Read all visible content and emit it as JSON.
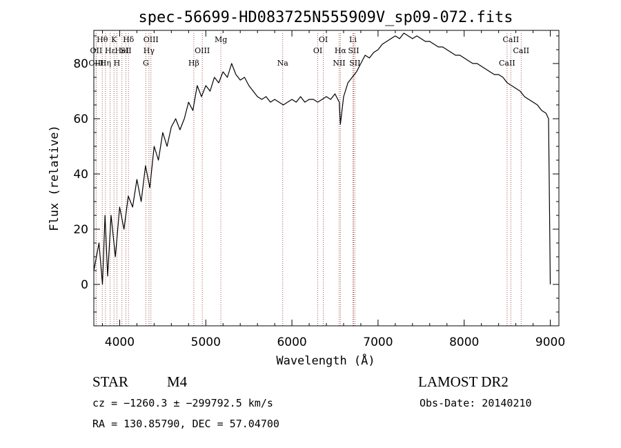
{
  "chart_data": {
    "type": "line",
    "title": "spec-56699-HD083725N555909V_sp09-072.fits",
    "xlabel": "Wavelength (Å)",
    "ylabel": "Flux (relative)",
    "xlim": [
      3700,
      9100
    ],
    "ylim": [
      -15,
      92
    ],
    "x_ticks": [
      "4000",
      "5000",
      "6000",
      "7000",
      "8000",
      "9000"
    ],
    "y_ticks": [
      "0",
      "20",
      "40",
      "60",
      "80"
    ],
    "x_tick_values": [
      4000,
      5000,
      6000,
      7000,
      8000,
      9000
    ],
    "y_tick_values": [
      0,
      20,
      40,
      60,
      80
    ],
    "grid": false,
    "series": [
      {
        "color": "#000000",
        "x": [
          3700,
          3760,
          3800,
          3830,
          3860,
          3900,
          3950,
          4000,
          4050,
          4100,
          4150,
          4200,
          4250,
          4300,
          4350,
          4400,
          4450,
          4500,
          4550,
          4600,
          4650,
          4700,
          4750,
          4800,
          4850,
          4900,
          4950,
          5000,
          5050,
          5100,
          5150,
          5200,
          5250,
          5300,
          5350,
          5400,
          5450,
          5500,
          5550,
          5600,
          5650,
          5700,
          5750,
          5800,
          5850,
          5900,
          5950,
          6000,
          6050,
          6100,
          6150,
          6200,
          6250,
          6300,
          6350,
          6400,
          6450,
          6500,
          6550,
          6563,
          6600,
          6650,
          6700,
          6750,
          6800,
          6850,
          6900,
          6950,
          7000,
          7050,
          7100,
          7150,
          7200,
          7250,
          7300,
          7350,
          7400,
          7450,
          7500,
          7550,
          7600,
          7650,
          7700,
          7750,
          7800,
          7850,
          7900,
          7950,
          8000,
          8050,
          8100,
          8150,
          8200,
          8250,
          8300,
          8350,
          8400,
          8450,
          8500,
          8550,
          8600,
          8650,
          8700,
          8750,
          8800,
          8850,
          8900,
          8950,
          8980,
          8990,
          9000
        ],
        "y": [
          5,
          15,
          0,
          25,
          3,
          25,
          10,
          28,
          20,
          32,
          28,
          38,
          30,
          43,
          35,
          50,
          45,
          55,
          50,
          57,
          60,
          56,
          60,
          66,
          63,
          72,
          68,
          72,
          70,
          75,
          73,
          77,
          75,
          80,
          76,
          74,
          75,
          72,
          70,
          68,
          67,
          68,
          66,
          67,
          66,
          65,
          66,
          67,
          66,
          68,
          66,
          67,
          67,
          66,
          67,
          68,
          67,
          69,
          66,
          58,
          68,
          73,
          75,
          77,
          80,
          83,
          82,
          84,
          85,
          87,
          88,
          89,
          90,
          89,
          91,
          90,
          89,
          90,
          89,
          88,
          88,
          87,
          86,
          86,
          85,
          84,
          83,
          83,
          82,
          81,
          80,
          80,
          79,
          78,
          77,
          76,
          76,
          75,
          73,
          72,
          71,
          70,
          68,
          67,
          66,
          65,
          63,
          62,
          60,
          30,
          0
        ]
      }
    ],
    "spectral_lines": [
      {
        "label": "Hθ",
        "wavelength": 3798,
        "row": 1
      },
      {
        "label": "K",
        "wavelength": 3934,
        "row": 1
      },
      {
        "label": "Hδ",
        "wavelength": 4102,
        "row": 1
      },
      {
        "label": "OIII",
        "wavelength": 4363,
        "row": 1
      },
      {
        "label": "Mg",
        "wavelength": 5175,
        "row": 1
      },
      {
        "label": "OI",
        "wavelength": 6364,
        "row": 1
      },
      {
        "label": "Li",
        "wavelength": 6708,
        "row": 1
      },
      {
        "label": "CaII",
        "wavelength": 8542,
        "row": 1
      },
      {
        "label": "OII",
        "wavelength": 3727,
        "row": 2
      },
      {
        "label": "Hε",
        "wavelength": 3889,
        "row": 2
      },
      {
        "label": "HeI",
        "wavelength": 4026,
        "row": 2
      },
      {
        "label": "SII",
        "wavelength": 4072,
        "row": 2
      },
      {
        "label": "Hγ",
        "wavelength": 4340,
        "row": 2
      },
      {
        "label": "OIII",
        "wavelength": 4959,
        "row": 2
      },
      {
        "label": "OI",
        "wavelength": 6300,
        "row": 2
      },
      {
        "label": "Hα",
        "wavelength": 6563,
        "row": 2
      },
      {
        "label": "SII",
        "wavelength": 6716,
        "row": 2
      },
      {
        "label": "CaII",
        "wavelength": 8662,
        "row": 2
      },
      {
        "label": "OIII",
        "wavelength": 3727,
        "row": 3
      },
      {
        "label": "Hη",
        "wavelength": 3835,
        "row": 3
      },
      {
        "label": "H",
        "wavelength": 3968,
        "row": 3
      },
      {
        "label": "G",
        "wavelength": 4304,
        "row": 3
      },
      {
        "label": "Hβ",
        "wavelength": 4861,
        "row": 3
      },
      {
        "label": "Na",
        "wavelength": 5893,
        "row": 3
      },
      {
        "label": "NII",
        "wavelength": 6548,
        "row": 3
      },
      {
        "label": "SII",
        "wavelength": 6731,
        "row": 3
      },
      {
        "label": "CaII",
        "wavelength": 8498,
        "row": 3
      }
    ]
  },
  "info": {
    "object_class": "STAR",
    "subclass": "M4",
    "survey": "LAMOST DR2",
    "velocity": "cz = −1260.3 ± −299792.5 km/s",
    "obs_date": "Obs-Date: 20140210",
    "coordinates": "RA = 130.85790, DEC =  57.04700"
  }
}
